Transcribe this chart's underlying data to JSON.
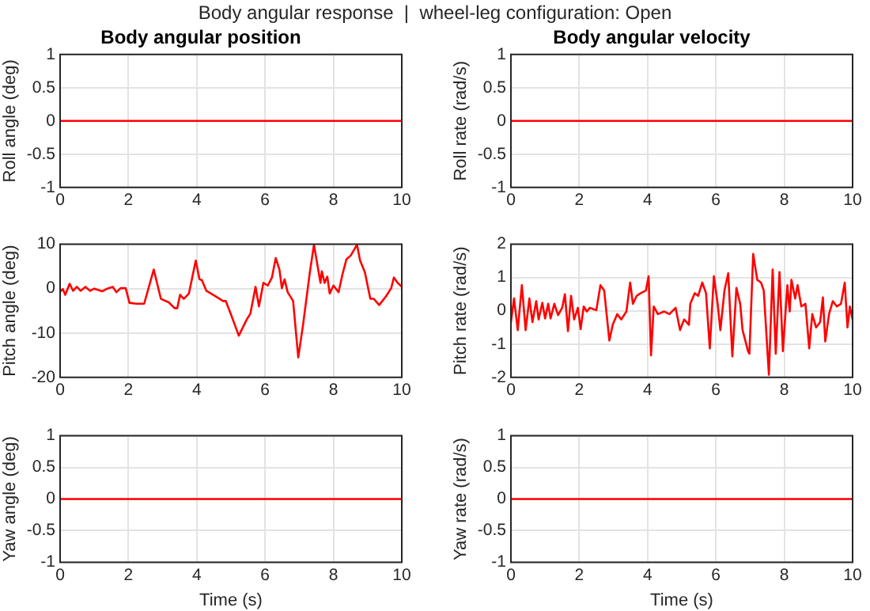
{
  "chart_data": [
    {
      "type": "line",
      "title": "Body angular position",
      "ylabel": "Roll angle (deg)",
      "annotations": [
        "Body angular response  |  wheel-leg configuration: Open"
      ],
      "x": [
        0,
        10
      ],
      "series": [
        {
          "color": "#ff0000",
          "values": [
            0,
            0
          ]
        }
      ],
      "xlim": [
        0,
        10
      ],
      "ylim": [
        -1,
        1
      ],
      "xticks": [
        0,
        2,
        4,
        6,
        8,
        10
      ],
      "yticks": [
        -1,
        -0.5,
        0,
        0.5,
        1
      ],
      "grid": true,
      "legend": false,
      "marker": "none",
      "line_style": "solid"
    },
    {
      "type": "line",
      "title": "Body angular velocity",
      "ylabel": "Roll rate (rad/s)",
      "x": [
        0,
        10
      ],
      "series": [
        {
          "color": "#ff0000",
          "values": [
            0,
            0
          ]
        }
      ],
      "xlim": [
        0,
        10
      ],
      "ylim": [
        -1,
        1
      ],
      "xticks": [
        0,
        2,
        4,
        6,
        8,
        10
      ],
      "yticks": [
        -1,
        -0.5,
        0,
        0.5,
        1
      ],
      "grid": true,
      "legend": false,
      "marker": "none",
      "line_style": "solid"
    },
    {
      "type": "line",
      "ylabel": "Pitch angle (deg)",
      "x": [
        0,
        0.08,
        0.15,
        0.28,
        0.38,
        0.49,
        0.6,
        0.74,
        0.88,
        1.0,
        1.23,
        1.38,
        1.54,
        1.65,
        1.77,
        1.92,
        2.03,
        2.23,
        2.46,
        2.74,
        2.95,
        3.18,
        3.35,
        3.43,
        3.51,
        3.62,
        3.77,
        3.97,
        4.08,
        4.15,
        4.28,
        4.54,
        4.77,
        4.85,
        5.0,
        5.23,
        5.46,
        5.57,
        5.72,
        5.82,
        5.95,
        6.08,
        6.2,
        6.31,
        6.42,
        6.49,
        6.57,
        6.66,
        6.82,
        6.97,
        7.11,
        7.31,
        7.43,
        7.62,
        7.66,
        7.74,
        7.82,
        7.89,
        8.0,
        8.15,
        8.26,
        8.38,
        8.51,
        8.69,
        8.78,
        8.92,
        9.08,
        9.18,
        9.34,
        9.54,
        9.69,
        9.77,
        9.88,
        10
      ],
      "series": [
        {
          "color": "#ff0000",
          "values": [
            -0.7,
            -0.1,
            -1.4,
            1.1,
            -0.5,
            0.4,
            -0.5,
            0.4,
            -0.5,
            0,
            -0.6,
            0,
            0.4,
            -0.8,
            0.1,
            0.1,
            -3.2,
            -3.4,
            -3.4,
            4.3,
            -2.3,
            -3.1,
            -4.4,
            -4.4,
            -1.4,
            -2.3,
            -1.1,
            6.3,
            2.1,
            1.9,
            -0.5,
            -1.7,
            -2.8,
            -2.8,
            -5.8,
            -10.6,
            -7.0,
            -5.6,
            0.4,
            -4.0,
            1.3,
            0.7,
            2.5,
            6.9,
            4.3,
            0.1,
            2.1,
            -0.8,
            -2.8,
            -15.5,
            -8.2,
            3.7,
            9.9,
            1.3,
            3.9,
            1.3,
            2.7,
            -1.1,
            0.7,
            -0.8,
            3.1,
            6.6,
            7.5,
            9.9,
            6.3,
            3.7,
            -2.3,
            -2.3,
            -3.7,
            -1.7,
            0.1,
            2.5,
            1.3,
            0.4
          ]
        }
      ],
      "xlim": [
        0,
        10
      ],
      "ylim": [
        -20,
        10
      ],
      "xticks": [
        0,
        2,
        4,
        6,
        8,
        10
      ],
      "yticks": [
        -20,
        -10,
        0,
        10
      ],
      "grid": true,
      "legend": false,
      "marker": "none",
      "line_style": "solid"
    },
    {
      "type": "line",
      "ylabel": "Pitch rate (rad/s)",
      "x": [
        0,
        0.09,
        0.2,
        0.32,
        0.43,
        0.54,
        0.63,
        0.74,
        0.81,
        0.92,
        1.0,
        1.09,
        1.16,
        1.27,
        1.38,
        1.5,
        1.58,
        1.67,
        1.76,
        1.85,
        1.96,
        2.04,
        2.13,
        2.22,
        2.31,
        2.5,
        2.62,
        2.73,
        2.88,
        2.98,
        3.11,
        3.23,
        3.38,
        3.49,
        3.57,
        3.68,
        3.8,
        3.95,
        4.03,
        4.1,
        4.18,
        4.3,
        4.49,
        4.64,
        4.82,
        4.95,
        5.07,
        5.21,
        5.25,
        5.38,
        5.48,
        5.6,
        5.71,
        5.82,
        5.94,
        6.05,
        6.13,
        6.25,
        6.36,
        6.48,
        6.6,
        6.71,
        6.78,
        6.94,
        6.98,
        7.09,
        7.21,
        7.32,
        7.4,
        7.55,
        7.66,
        7.75,
        7.86,
        7.96,
        8.09,
        8.16,
        8.21,
        8.32,
        8.39,
        8.5,
        8.62,
        8.73,
        8.82,
        8.93,
        9.05,
        9.13,
        9.2,
        9.31,
        9.42,
        9.54,
        9.66,
        9.77,
        9.85,
        9.92,
        10
      ],
      "series": [
        {
          "color": "#ff0000",
          "values": [
            -0.34,
            0.37,
            -0.58,
            0.77,
            -0.58,
            0.37,
            -0.34,
            0.29,
            -0.26,
            0.24,
            -0.23,
            0.21,
            -0.23,
            0.21,
            -0.13,
            0.09,
            0.5,
            -0.61,
            0.45,
            -0.26,
            0.09,
            -0.55,
            0.13,
            -0.02,
            0.09,
            0.02,
            0.77,
            0.61,
            -0.89,
            -0.42,
            -0.1,
            -0.26,
            -0.02,
            0.85,
            0.21,
            0.45,
            0.53,
            0.61,
            1.04,
            -1.34,
            0.13,
            -0.1,
            -0.02,
            -0.1,
            0.09,
            -0.58,
            -0.26,
            -0.42,
            0.21,
            0.53,
            0.45,
            0.85,
            0.53,
            -1.13,
            1.04,
            0.21,
            -0.58,
            0.61,
            1.13,
            -1.37,
            0.69,
            0.21,
            -0.58,
            -1.21,
            -1.29,
            1.71,
            0.93,
            0.85,
            0.61,
            -1.92,
            1.24,
            -1.29,
            1.16,
            -1.21,
            0.77,
            -0.02,
            0.93,
            0.37,
            0.77,
            0.13,
            0.21,
            -1.13,
            -0.1,
            -0.5,
            -0.34,
            0.4,
            -0.92,
            -0.1,
            0.29,
            0.13,
            0.21,
            0.85,
            -0.5,
            0.13,
            -0.26
          ]
        }
      ],
      "xlim": [
        0,
        10
      ],
      "ylim": [
        -2,
        2
      ],
      "xticks": [
        0,
        2,
        4,
        6,
        8,
        10
      ],
      "yticks": [
        -2,
        -1,
        0,
        1,
        2
      ],
      "grid": true,
      "legend": false,
      "marker": "none",
      "line_style": "solid"
    },
    {
      "type": "line",
      "xlabel": "Time (s)",
      "ylabel": "Yaw angle (deg)",
      "x": [
        0,
        10
      ],
      "series": [
        {
          "color": "#ff0000",
          "values": [
            0,
            0
          ]
        }
      ],
      "xlim": [
        0,
        10
      ],
      "ylim": [
        -1,
        1
      ],
      "xticks": [
        0,
        2,
        4,
        6,
        8,
        10
      ],
      "yticks": [
        -1,
        -0.5,
        0,
        0.5,
        1
      ],
      "grid": true,
      "legend": false,
      "marker": "none",
      "line_style": "solid"
    },
    {
      "type": "line",
      "xlabel": "Time (s)",
      "ylabel": "Yaw rate (rad/s)",
      "x": [
        0,
        10
      ],
      "series": [
        {
          "color": "#ff0000",
          "values": [
            0,
            0
          ]
        }
      ],
      "xlim": [
        0,
        10
      ],
      "ylim": [
        -1,
        1
      ],
      "xticks": [
        0,
        2,
        4,
        6,
        8,
        10
      ],
      "yticks": [
        -1,
        -0.5,
        0,
        0.5,
        1
      ],
      "grid": true,
      "legend": false,
      "marker": "none",
      "line_style": "solid"
    }
  ]
}
